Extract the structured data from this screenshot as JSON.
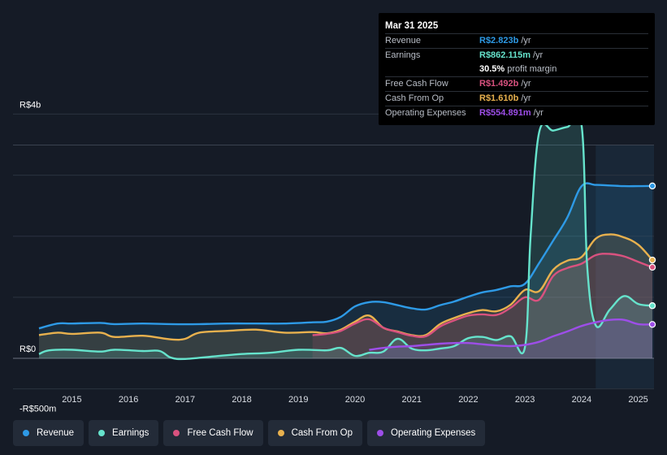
{
  "tooltip": {
    "date": "Mar 31 2025",
    "rows": [
      {
        "key": "Revenue",
        "value": "R$2.823b",
        "unit": "/yr",
        "color": "#2e9ae6"
      },
      {
        "key": "Earnings",
        "value": "R$862.115m",
        "unit": "/yr",
        "color": "#66e3cc"
      },
      {
        "key": "",
        "value": "30.5%",
        "unit": "profit margin",
        "color": "#ffffff"
      },
      {
        "key": "Free Cash Flow",
        "value": "R$1.492b",
        "unit": "/yr",
        "color": "#d9527f"
      },
      {
        "key": "Cash From Op",
        "value": "R$1.610b",
        "unit": "/yr",
        "color": "#e8b14e"
      },
      {
        "key": "Operating Expenses",
        "value": "R$554.891m",
        "unit": "/yr",
        "color": "#9d4ee8"
      }
    ]
  },
  "legend": [
    {
      "label": "Revenue",
      "color": "#2e9ae6"
    },
    {
      "label": "Earnings",
      "color": "#66e3cc"
    },
    {
      "label": "Free Cash Flow",
      "color": "#d9527f"
    },
    {
      "label": "Cash From Op",
      "color": "#e8b14e"
    },
    {
      "label": "Operating Expenses",
      "color": "#9d4ee8"
    }
  ],
  "chart_data": {
    "type": "area",
    "title": "",
    "xlabel": "",
    "ylabel": "",
    "currency": "R$",
    "y_unit": "billions",
    "ylim": [
      -0.5,
      4.0
    ],
    "xlim": [
      2014.42,
      2025.25
    ],
    "y_tick_labels": [
      {
        "value": 4.0,
        "label": "R$4b"
      },
      {
        "value": 0.0,
        "label": "R$0"
      },
      {
        "value": -0.5,
        "label": "-R$500m"
      }
    ],
    "x_tick_labels": [
      "2015",
      "2016",
      "2017",
      "2018",
      "2019",
      "2020",
      "2021",
      "2022",
      "2023",
      "2024",
      "2025"
    ],
    "x_tick_values": [
      2015,
      2016,
      2017,
      2018,
      2019,
      2020,
      2021,
      2022,
      2023,
      2024,
      2025
    ],
    "highlight_start": 2024.25,
    "series": [
      {
        "name": "Revenue",
        "color": "#2e9ae6",
        "x": [
          2014.42,
          2014.75,
          2015.0,
          2015.5,
          2015.75,
          2016.25,
          2016.75,
          2017.25,
          2017.75,
          2018.25,
          2018.75,
          2019.25,
          2019.5,
          2019.75,
          2020.0,
          2020.25,
          2020.5,
          2020.75,
          2021.0,
          2021.25,
          2021.5,
          2021.75,
          2022.0,
          2022.25,
          2022.5,
          2022.75,
          2023.0,
          2023.25,
          2023.5,
          2023.75,
          2024.0,
          2024.25,
          2024.5,
          2024.75,
          2025.0,
          2025.25
        ],
        "values": [
          0.49,
          0.57,
          0.57,
          0.58,
          0.56,
          0.57,
          0.56,
          0.56,
          0.57,
          0.57,
          0.57,
          0.59,
          0.6,
          0.68,
          0.85,
          0.92,
          0.92,
          0.87,
          0.82,
          0.8,
          0.87,
          0.93,
          1.01,
          1.08,
          1.12,
          1.18,
          1.22,
          1.56,
          1.93,
          2.31,
          2.82,
          2.84,
          2.83,
          2.82,
          2.82,
          2.823
        ]
      },
      {
        "name": "Earnings",
        "color": "#66e3cc",
        "x": [
          2014.42,
          2014.6,
          2015.0,
          2015.5,
          2015.75,
          2016.25,
          2016.55,
          2016.75,
          2017.0,
          2017.5,
          2018.0,
          2018.5,
          2019.0,
          2019.5,
          2019.75,
          2020.0,
          2020.25,
          2020.5,
          2020.75,
          2021.0,
          2021.25,
          2021.5,
          2021.75,
          2022.0,
          2022.25,
          2022.5,
          2022.75,
          2023.0,
          2023.1,
          2023.25,
          2023.5,
          2023.75,
          2024.0,
          2024.1,
          2024.25,
          2024.5,
          2024.75,
          2025.0,
          2025.25
        ],
        "values": [
          0.07,
          0.13,
          0.14,
          0.11,
          0.14,
          0.12,
          0.12,
          0.01,
          -0.01,
          0.03,
          0.07,
          0.09,
          0.14,
          0.13,
          0.17,
          0.04,
          0.09,
          0.11,
          0.32,
          0.16,
          0.13,
          0.16,
          0.2,
          0.33,
          0.35,
          0.3,
          0.36,
          0.18,
          2.0,
          3.7,
          3.73,
          3.79,
          3.81,
          1.5,
          0.54,
          0.8,
          1.02,
          0.89,
          0.862
        ]
      },
      {
        "name": "Free Cash Flow",
        "color": "#d9527f",
        "x": [
          2019.25,
          2019.5,
          2019.75,
          2020.0,
          2020.25,
          2020.5,
          2020.75,
          2021.0,
          2021.25,
          2021.5,
          2021.75,
          2022.0,
          2022.25,
          2022.5,
          2022.75,
          2023.0,
          2023.25,
          2023.5,
          2023.75,
          2024.0,
          2024.25,
          2024.5,
          2024.75,
          2025.0,
          2025.25
        ],
        "values": [
          0.38,
          0.4,
          0.45,
          0.57,
          0.64,
          0.5,
          0.43,
          0.37,
          0.36,
          0.52,
          0.62,
          0.7,
          0.72,
          0.71,
          0.83,
          1.0,
          0.96,
          1.35,
          1.48,
          1.55,
          1.69,
          1.71,
          1.67,
          1.58,
          1.492
        ]
      },
      {
        "name": "Cash From Op",
        "color": "#e8b14e",
        "x": [
          2014.42,
          2014.75,
          2015.0,
          2015.5,
          2015.75,
          2016.25,
          2016.75,
          2017.0,
          2017.25,
          2017.75,
          2018.25,
          2018.75,
          2019.25,
          2019.5,
          2019.75,
          2020.0,
          2020.25,
          2020.5,
          2020.75,
          2021.0,
          2021.25,
          2021.5,
          2021.75,
          2022.0,
          2022.25,
          2022.5,
          2022.75,
          2023.0,
          2023.25,
          2023.5,
          2023.75,
          2024.0,
          2024.25,
          2024.5,
          2024.75,
          2025.0,
          2025.25
        ],
        "values": [
          0.38,
          0.42,
          0.4,
          0.42,
          0.35,
          0.37,
          0.31,
          0.32,
          0.42,
          0.45,
          0.47,
          0.42,
          0.43,
          0.41,
          0.47,
          0.6,
          0.7,
          0.5,
          0.44,
          0.38,
          0.38,
          0.56,
          0.66,
          0.74,
          0.79,
          0.77,
          0.88,
          1.12,
          1.1,
          1.45,
          1.6,
          1.66,
          1.96,
          2.03,
          1.98,
          1.86,
          1.61
        ]
      },
      {
        "name": "Operating Expenses",
        "color": "#9d4ee8",
        "x": [
          2020.25,
          2020.5,
          2020.75,
          2021.0,
          2021.25,
          2021.5,
          2021.75,
          2022.0,
          2022.25,
          2022.5,
          2022.75,
          2023.0,
          2023.25,
          2023.5,
          2023.75,
          2024.0,
          2024.25,
          2024.5,
          2024.75,
          2025.0,
          2025.25
        ],
        "values": [
          0.14,
          0.17,
          0.19,
          0.2,
          0.22,
          0.24,
          0.25,
          0.25,
          0.23,
          0.21,
          0.2,
          0.22,
          0.27,
          0.36,
          0.44,
          0.53,
          0.59,
          0.63,
          0.63,
          0.56,
          0.555
        ]
      }
    ]
  }
}
